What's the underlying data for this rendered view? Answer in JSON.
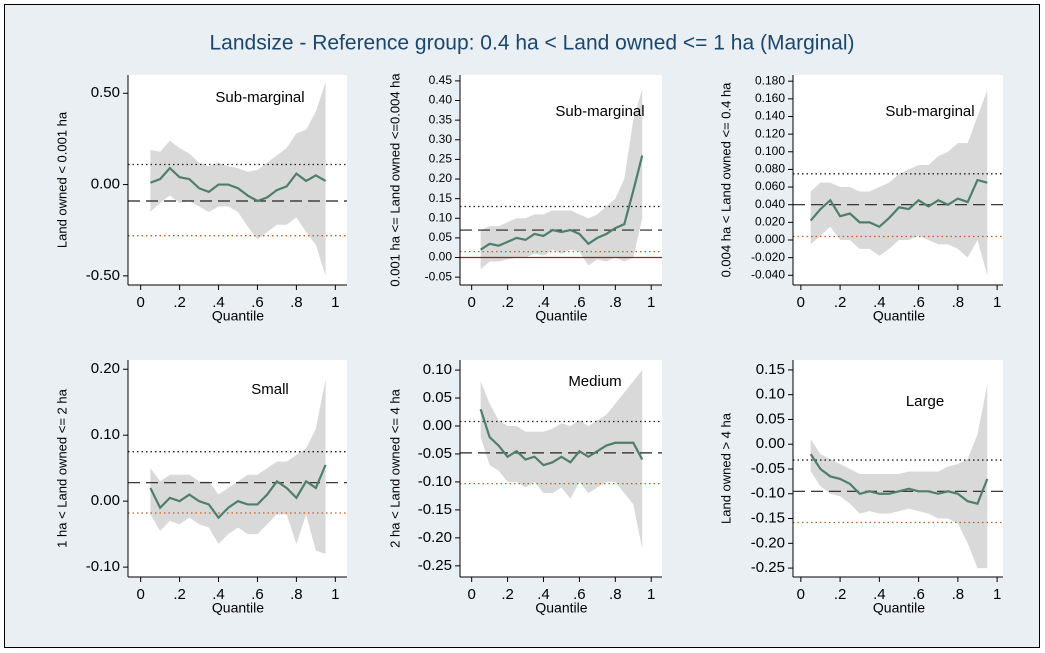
{
  "title": "Landsize - Reference group: 0.4 ha < Land owned <= 1 ha (Marginal)",
  "chart_data": [
    {
      "type": "line",
      "annotation": "Sub-marginal",
      "ylabel": "Land owned < 0.001 ha",
      "xlabel": "Quantile",
      "x": [
        0.05,
        0.1,
        0.15,
        0.2,
        0.25,
        0.3,
        0.35,
        0.4,
        0.45,
        0.5,
        0.55,
        0.6,
        0.65,
        0.7,
        0.75,
        0.8,
        0.85,
        0.9,
        0.95
      ],
      "values": [
        0.01,
        0.03,
        0.09,
        0.04,
        0.03,
        -0.02,
        -0.04,
        0.0,
        0.0,
        -0.02,
        -0.06,
        -0.09,
        -0.07,
        -0.03,
        -0.01,
        0.06,
        0.02,
        0.05,
        0.02
      ],
      "ci_upper": [
        0.19,
        0.18,
        0.24,
        0.2,
        0.17,
        0.12,
        0.1,
        0.12,
        0.1,
        0.09,
        0.07,
        0.08,
        0.12,
        0.16,
        0.2,
        0.28,
        0.3,
        0.4,
        0.56
      ],
      "ci_lower": [
        -0.15,
        -0.1,
        -0.06,
        -0.1,
        -0.09,
        -0.12,
        -0.15,
        -0.12,
        -0.12,
        -0.15,
        -0.23,
        -0.3,
        -0.26,
        -0.22,
        -0.22,
        -0.18,
        -0.26,
        -0.33,
        -0.5
      ],
      "color": "#4e7f6b",
      "band_color": "#d9d9d9",
      "hlines": [
        {
          "value": -0.09,
          "style": "dashed",
          "color": "#222222"
        },
        {
          "value": 0.11,
          "style": "dotted",
          "color": "#222222"
        },
        {
          "value": -0.28,
          "style": "dotted",
          "color": "#c0601a"
        }
      ],
      "xlim": [
        -0.065,
        1.06
      ],
      "xticks": [
        0,
        {
          "value": 0.2,
          "label": ".2"
        },
        {
          "value": 0.4,
          "label": ".4"
        },
        {
          "value": 0.6,
          "label": ".6"
        },
        {
          "value": 0.8,
          "label": ".8"
        },
        1
      ],
      "ylim": [
        -0.55,
        0.6
      ],
      "yticks": [
        {
          "value": 0.5,
          "label": "0.50"
        },
        {
          "value": 0,
          "label": "0.00"
        },
        {
          "value": -0.5,
          "label": "-0.50"
        }
      ]
    },
    {
      "type": "line",
      "annotation": "Sub-marginal",
      "ylabel": "0.001 ha <= Land owned <=0.004 ha",
      "xlabel": "Quantile",
      "x": [
        0.05,
        0.1,
        0.15,
        0.2,
        0.25,
        0.3,
        0.35,
        0.4,
        0.45,
        0.5,
        0.55,
        0.6,
        0.65,
        0.7,
        0.75,
        0.8,
        0.85,
        0.9,
        0.95
      ],
      "values": [
        0.02,
        0.035,
        0.03,
        0.04,
        0.05,
        0.045,
        0.06,
        0.055,
        0.07,
        0.065,
        0.07,
        0.06,
        0.035,
        0.05,
        0.06,
        0.075,
        0.085,
        0.17,
        0.26
      ],
      "ci_upper": [
        0.07,
        0.08,
        0.08,
        0.09,
        0.1,
        0.1,
        0.11,
        0.11,
        0.12,
        0.12,
        0.12,
        0.11,
        0.1,
        0.11,
        0.13,
        0.15,
        0.2,
        0.35,
        0.43
      ],
      "ci_lower": [
        -0.03,
        -0.01,
        -0.01,
        -0.005,
        0.0,
        0.0,
        0.01,
        0.005,
        0.02,
        0.01,
        0.02,
        0.015,
        -0.02,
        -0.005,
        -0.01,
        0.0,
        -0.01,
        0.0,
        0.1
      ],
      "color": "#4e7f6b",
      "band_color": "#d9d9d9",
      "hlines": [
        {
          "value": 0,
          "style": "solid",
          "color": "#9b1b30"
        },
        {
          "value": 0.07,
          "style": "dashed",
          "color": "#222222"
        },
        {
          "value": 0.13,
          "style": "dotted",
          "color": "#222222"
        },
        {
          "value": 0.015,
          "style": "dotted",
          "color": "#c0601a"
        }
      ],
      "xlim": [
        -0.065,
        1.06
      ],
      "xticks": [
        0,
        {
          "value": 0.2,
          "label": ".2"
        },
        {
          "value": 0.4,
          "label": ".4"
        },
        {
          "value": 0.6,
          "label": ".6"
        },
        {
          "value": 0.8,
          "label": ".8"
        },
        1
      ],
      "ylim": [
        -0.07,
        0.465
      ],
      "yticks": [
        0.45,
        {
          "value": 0.4,
          "label": "0.40"
        },
        0.35,
        {
          "value": 0.3,
          "label": "0.30"
        },
        0.25,
        {
          "value": 0.2,
          "label": "0.20"
        },
        0.15,
        {
          "value": 0.1,
          "label": "0.10"
        },
        0.05,
        {
          "value": 0,
          "label": "0.00"
        },
        -0.05
      ]
    },
    {
      "type": "line",
      "annotation": "Sub-marginal",
      "ylabel": "0.004 ha < Land owned <= 0.4 ha",
      "xlabel": "Quantile",
      "x": [
        0.05,
        0.1,
        0.15,
        0.2,
        0.25,
        0.3,
        0.35,
        0.4,
        0.45,
        0.5,
        0.55,
        0.6,
        0.65,
        0.7,
        0.75,
        0.8,
        0.85,
        0.9,
        0.95
      ],
      "values": [
        0.022,
        0.035,
        0.045,
        0.027,
        0.03,
        0.02,
        0.02,
        0.015,
        0.025,
        0.037,
        0.035,
        0.045,
        0.038,
        0.045,
        0.04,
        0.047,
        0.043,
        0.068,
        0.065
      ],
      "ci_upper": [
        0.055,
        0.065,
        0.065,
        0.06,
        0.06,
        0.055,
        0.055,
        0.06,
        0.065,
        0.075,
        0.08,
        0.085,
        0.085,
        0.095,
        0.1,
        0.11,
        0.11,
        0.14,
        0.17
      ],
      "ci_lower": [
        -0.005,
        0.005,
        0.015,
        0.0,
        0.0,
        -0.01,
        -0.01,
        -0.018,
        -0.01,
        0.0,
        0.0,
        0.005,
        0.0,
        -0.005,
        -0.005,
        -0.01,
        -0.02,
        0.0,
        -0.04
      ],
      "color": "#4e7f6b",
      "band_color": "#d9d9d9",
      "hlines": [
        {
          "value": 0.04,
          "style": "dashed",
          "color": "#222222"
        },
        {
          "value": 0.075,
          "style": "dotted",
          "color": "#222222"
        },
        {
          "value": 0.004,
          "style": "dotted",
          "color": "#c0601a"
        }
      ],
      "xlim": [
        -0.04,
        1.03
      ],
      "xticks": [
        0,
        {
          "value": 0.2,
          "label": ".2"
        },
        {
          "value": 0.4,
          "label": ".4"
        },
        {
          "value": 0.6,
          "label": ".6"
        },
        {
          "value": 0.8,
          "label": ".8"
        },
        1
      ],
      "ylim": [
        -0.051,
        0.187
      ],
      "yticks": [
        {
          "value": 0.18,
          "label": "0.180"
        },
        {
          "value": 0.16,
          "label": "0.160"
        },
        {
          "value": 0.14,
          "label": "0.140"
        },
        {
          "value": 0.12,
          "label": "0.120"
        },
        {
          "value": 0.1,
          "label": "0.100"
        },
        {
          "value": 0.08,
          "label": "0.080"
        },
        {
          "value": 0.06,
          "label": "0.060"
        },
        {
          "value": 0.04,
          "label": "0.040"
        },
        {
          "value": 0.02,
          "label": "0.020"
        },
        {
          "value": 0,
          "label": "0.000"
        },
        {
          "value": -0.02,
          "label": "-0.020"
        },
        {
          "value": -0.04,
          "label": "-0.040"
        }
      ]
    },
    {
      "type": "line",
      "annotation": "Small",
      "ylabel": "1 ha < Land owned <= 2 ha",
      "xlabel": "Quantile",
      "x": [
        0.05,
        0.1,
        0.15,
        0.2,
        0.25,
        0.3,
        0.35,
        0.4,
        0.45,
        0.5,
        0.55,
        0.6,
        0.65,
        0.7,
        0.75,
        0.8,
        0.85,
        0.9,
        0.95
      ],
      "values": [
        0.02,
        -0.01,
        0.005,
        0.0,
        0.01,
        0.0,
        -0.005,
        -0.025,
        -0.01,
        0.0,
        -0.005,
        -0.005,
        0.01,
        0.03,
        0.02,
        0.005,
        0.03,
        0.02,
        0.055
      ],
      "ci_upper": [
        0.05,
        0.03,
        0.04,
        0.04,
        0.04,
        0.03,
        0.03,
        0.01,
        0.02,
        0.03,
        0.04,
        0.04,
        0.05,
        0.06,
        0.06,
        0.07,
        0.08,
        0.11,
        0.185
      ],
      "ci_lower": [
        -0.02,
        -0.045,
        -0.03,
        -0.035,
        -0.025,
        -0.035,
        -0.04,
        -0.065,
        -0.05,
        -0.04,
        -0.05,
        -0.05,
        -0.035,
        -0.02,
        -0.02,
        -0.065,
        -0.02,
        -0.075,
        -0.08
      ],
      "color": "#4e7f6b",
      "band_color": "#d9d9d9",
      "hlines": [
        {
          "value": 0.028,
          "style": "dashed",
          "color": "#222222"
        },
        {
          "value": 0.075,
          "style": "dotted",
          "color": "#222222"
        },
        {
          "value": -0.018,
          "style": "dotted",
          "color": "#c0601a"
        }
      ],
      "xlim": [
        -0.065,
        1.06
      ],
      "xticks": [
        0,
        {
          "value": 0.2,
          "label": ".2"
        },
        {
          "value": 0.4,
          "label": ".4"
        },
        {
          "value": 0.6,
          "label": ".6"
        },
        {
          "value": 0.8,
          "label": ".8"
        },
        1
      ],
      "ylim": [
        -0.115,
        0.214
      ],
      "yticks": [
        {
          "value": 0.2,
          "label": "0.20"
        },
        {
          "value": 0.1,
          "label": "0.10"
        },
        {
          "value": 0,
          "label": "0.00"
        },
        {
          "value": -0.1,
          "label": "-0.10"
        }
      ]
    },
    {
      "type": "line",
      "annotation": "Medium",
      "ylabel": "2 ha < Land owned <= 4 ha",
      "xlabel": "Quantile",
      "x": [
        0.05,
        0.1,
        0.15,
        0.2,
        0.25,
        0.3,
        0.35,
        0.4,
        0.45,
        0.5,
        0.55,
        0.6,
        0.65,
        0.7,
        0.75,
        0.8,
        0.85,
        0.9,
        0.95
      ],
      "values": [
        0.03,
        -0.02,
        -0.035,
        -0.055,
        -0.045,
        -0.06,
        -0.055,
        -0.07,
        -0.065,
        -0.055,
        -0.065,
        -0.045,
        -0.055,
        -0.045,
        -0.035,
        -0.03,
        -0.03,
        -0.03,
        -0.06
      ],
      "ci_upper": [
        0.08,
        0.04,
        0.01,
        0.0,
        0.0,
        -0.01,
        -0.01,
        -0.01,
        -0.005,
        0.005,
        0.0,
        0.01,
        0.0,
        0.01,
        0.02,
        0.04,
        0.06,
        0.08,
        0.1
      ],
      "ci_lower": [
        -0.02,
        -0.07,
        -0.08,
        -0.1,
        -0.1,
        -0.11,
        -0.1,
        -0.12,
        -0.12,
        -0.11,
        -0.13,
        -0.1,
        -0.12,
        -0.11,
        -0.1,
        -0.1,
        -0.12,
        -0.14,
        -0.22
      ],
      "color": "#4e7f6b",
      "band_color": "#d9d9d9",
      "hlines": [
        {
          "value": -0.048,
          "style": "dashed",
          "color": "#222222"
        },
        {
          "value": 0.008,
          "style": "dotted",
          "color": "#222222"
        },
        {
          "value": -0.103,
          "style": "dotted",
          "color": "#c0601a"
        }
      ],
      "xlim": [
        -0.065,
        1.06
      ],
      "xticks": [
        0,
        {
          "value": 0.2,
          "label": ".2"
        },
        {
          "value": 0.4,
          "label": ".4"
        },
        {
          "value": 0.6,
          "label": ".6"
        },
        {
          "value": 0.8,
          "label": ".8"
        },
        1
      ],
      "ylim": [
        -0.27,
        0.118
      ],
      "yticks": [
        {
          "value": 0.1,
          "label": "0.10"
        },
        0.05,
        {
          "value": 0,
          "label": "0.00"
        },
        -0.05,
        {
          "value": -0.1,
          "label": "-0.10"
        },
        -0.15,
        {
          "value": -0.2,
          "label": "-0.20"
        },
        -0.25
      ]
    },
    {
      "type": "line",
      "annotation": "Large",
      "ylabel": "Land owned > 4 ha",
      "xlabel": "Quantile",
      "x": [
        0.05,
        0.1,
        0.15,
        0.2,
        0.25,
        0.3,
        0.35,
        0.4,
        0.45,
        0.5,
        0.55,
        0.6,
        0.65,
        0.7,
        0.75,
        0.8,
        0.85,
        0.9,
        0.95
      ],
      "values": [
        -0.02,
        -0.05,
        -0.065,
        -0.07,
        -0.08,
        -0.1,
        -0.095,
        -0.1,
        -0.1,
        -0.095,
        -0.09,
        -0.095,
        -0.095,
        -0.1,
        -0.095,
        -0.1,
        -0.115,
        -0.12,
        -0.07
      ],
      "ci_upper": [
        0.01,
        -0.02,
        -0.03,
        -0.04,
        -0.05,
        -0.06,
        -0.06,
        -0.06,
        -0.06,
        -0.06,
        -0.055,
        -0.055,
        -0.055,
        -0.055,
        -0.045,
        -0.04,
        -0.03,
        0.02,
        0.12
      ],
      "ci_lower": [
        -0.055,
        -0.085,
        -0.1,
        -0.105,
        -0.12,
        -0.14,
        -0.135,
        -0.14,
        -0.14,
        -0.135,
        -0.13,
        -0.135,
        -0.14,
        -0.15,
        -0.15,
        -0.16,
        -0.2,
        -0.25,
        -0.25
      ],
      "color": "#4e7f6b",
      "band_color": "#d9d9d9",
      "hlines": [
        {
          "value": -0.095,
          "style": "dashed",
          "color": "#222222"
        },
        {
          "value": -0.032,
          "style": "dotted",
          "color": "#222222"
        },
        {
          "value": -0.158,
          "style": "dotted",
          "color": "#c0601a"
        }
      ],
      "xlim": [
        -0.04,
        1.03
      ],
      "xticks": [
        0,
        {
          "value": 0.2,
          "label": ".2"
        },
        {
          "value": 0.4,
          "label": ".4"
        },
        {
          "value": 0.6,
          "label": ".6"
        },
        {
          "value": 0.8,
          "label": ".8"
        },
        1
      ],
      "ylim": [
        -0.268,
        0.17
      ],
      "yticks": [
        0.15,
        {
          "value": 0.1,
          "label": "0.10"
        },
        0.05,
        {
          "value": 0,
          "label": "0.00"
        },
        -0.05,
        {
          "value": -0.1,
          "label": "-0.10"
        },
        -0.15,
        {
          "value": -0.2,
          "label": "-0.20"
        },
        -0.25
      ]
    }
  ]
}
